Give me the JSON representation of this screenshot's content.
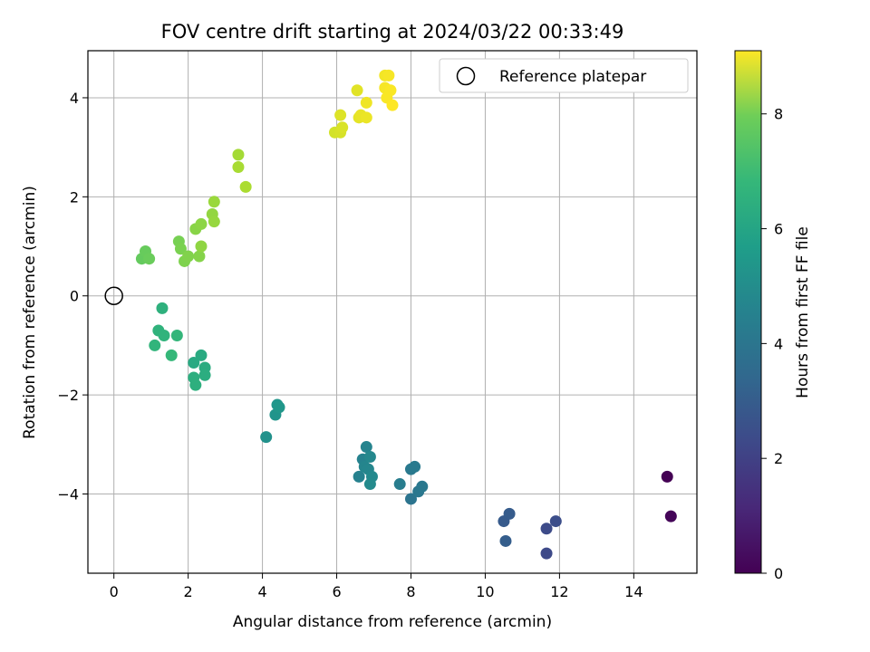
{
  "chart_data": {
    "type": "scatter",
    "title": "FOV centre drift starting at 2024/03/22 00:33:49",
    "xlabel": "Angular distance from reference (arcmin)",
    "ylabel": "Rotation from reference (arcmin)",
    "xlim": [
      -0.7,
      15.7
    ],
    "ylim": [
      -5.6,
      4.95
    ],
    "xticks": [
      0,
      2,
      4,
      6,
      8,
      10,
      12,
      14
    ],
    "yticks": [
      -4,
      -2,
      0,
      2,
      4
    ],
    "xtick_labels": [
      "0",
      "2",
      "4",
      "6",
      "8",
      "10",
      "12",
      "14"
    ],
    "ytick_labels": [
      "−4",
      "−2",
      "0",
      "2",
      "4"
    ],
    "grid": true,
    "colormap": "viridis",
    "colorbar": {
      "label": "Hours from first FF file",
      "range": [
        0,
        9.1
      ],
      "ticks": [
        0,
        2,
        4,
        6,
        8
      ],
      "tick_labels": [
        "0",
        "2",
        "4",
        "6",
        "8"
      ]
    },
    "legend": {
      "position": "top-right",
      "entries": [
        "Reference platepar"
      ]
    },
    "reference_point": {
      "x": 0,
      "y": 0
    },
    "points": [
      {
        "x": 14.9,
        "y": -3.65,
        "c": 0.0
      },
      {
        "x": 15.0,
        "y": -4.45,
        "c": 0.1
      },
      {
        "x": 11.65,
        "y": -5.2,
        "c": 2.05
      },
      {
        "x": 11.65,
        "y": -4.7,
        "c": 2.1
      },
      {
        "x": 11.9,
        "y": -4.55,
        "c": 2.2
      },
      {
        "x": 10.5,
        "y": -4.55,
        "c": 2.6
      },
      {
        "x": 10.65,
        "y": -4.4,
        "c": 2.65
      },
      {
        "x": 10.55,
        "y": -4.95,
        "c": 2.7
      },
      {
        "x": 8.0,
        "y": -4.1,
        "c": 3.5
      },
      {
        "x": 8.2,
        "y": -3.95,
        "c": 3.6
      },
      {
        "x": 8.3,
        "y": -3.85,
        "c": 3.65
      },
      {
        "x": 8.0,
        "y": -3.5,
        "c": 3.7
      },
      {
        "x": 8.1,
        "y": -3.45,
        "c": 3.75
      },
      {
        "x": 7.7,
        "y": -3.8,
        "c": 3.85
      },
      {
        "x": 6.6,
        "y": -3.65,
        "c": 4.0
      },
      {
        "x": 6.7,
        "y": -3.3,
        "c": 4.05
      },
      {
        "x": 6.8,
        "y": -3.05,
        "c": 4.1
      },
      {
        "x": 6.75,
        "y": -3.45,
        "c": 4.15
      },
      {
        "x": 6.85,
        "y": -3.5,
        "c": 4.2
      },
      {
        "x": 6.9,
        "y": -3.25,
        "c": 4.25
      },
      {
        "x": 6.95,
        "y": -3.65,
        "c": 4.3
      },
      {
        "x": 6.9,
        "y": -3.8,
        "c": 4.35
      },
      {
        "x": 4.1,
        "y": -2.85,
        "c": 4.6
      },
      {
        "x": 4.35,
        "y": -2.4,
        "c": 4.7
      },
      {
        "x": 4.4,
        "y": -2.2,
        "c": 4.75
      },
      {
        "x": 4.45,
        "y": -2.25,
        "c": 4.8
      },
      {
        "x": 2.15,
        "y": -1.35,
        "c": 5.5
      },
      {
        "x": 2.35,
        "y": -1.2,
        "c": 5.55
      },
      {
        "x": 2.45,
        "y": -1.45,
        "c": 5.6
      },
      {
        "x": 2.45,
        "y": -1.6,
        "c": 5.65
      },
      {
        "x": 2.15,
        "y": -1.65,
        "c": 5.7
      },
      {
        "x": 2.2,
        "y": -1.8,
        "c": 5.75
      },
      {
        "x": 1.3,
        "y": -0.25,
        "c": 5.8
      },
      {
        "x": 1.2,
        "y": -0.7,
        "c": 5.85
      },
      {
        "x": 1.35,
        "y": -0.8,
        "c": 5.9
      },
      {
        "x": 1.1,
        "y": -1.0,
        "c": 5.95
      },
      {
        "x": 1.7,
        "y": -0.8,
        "c": 6.0
      },
      {
        "x": 1.55,
        "y": -1.2,
        "c": 6.05
      },
      {
        "x": 0.75,
        "y": 0.75,
        "c": 6.9
      },
      {
        "x": 0.85,
        "y": 0.9,
        "c": 6.95
      },
      {
        "x": 0.95,
        "y": 0.75,
        "c": 7.0
      },
      {
        "x": 1.75,
        "y": 1.1,
        "c": 7.2
      },
      {
        "x": 1.8,
        "y": 0.95,
        "c": 7.25
      },
      {
        "x": 1.9,
        "y": 0.7,
        "c": 7.3
      },
      {
        "x": 2.0,
        "y": 0.8,
        "c": 7.35
      },
      {
        "x": 2.3,
        "y": 0.8,
        "c": 7.4
      },
      {
        "x": 2.2,
        "y": 1.35,
        "c": 7.45
      },
      {
        "x": 2.35,
        "y": 1.45,
        "c": 7.5
      },
      {
        "x": 2.35,
        "y": 1.0,
        "c": 7.55
      },
      {
        "x": 2.65,
        "y": 1.65,
        "c": 7.6
      },
      {
        "x": 2.7,
        "y": 1.5,
        "c": 7.65
      },
      {
        "x": 2.7,
        "y": 1.9,
        "c": 7.7
      },
      {
        "x": 3.35,
        "y": 2.85,
        "c": 7.85
      },
      {
        "x": 3.35,
        "y": 2.6,
        "c": 7.9
      },
      {
        "x": 3.55,
        "y": 2.2,
        "c": 7.95
      },
      {
        "x": 5.95,
        "y": 3.3,
        "c": 8.5
      },
      {
        "x": 6.1,
        "y": 3.3,
        "c": 8.55
      },
      {
        "x": 6.15,
        "y": 3.4,
        "c": 8.6
      },
      {
        "x": 6.1,
        "y": 3.65,
        "c": 8.65
      },
      {
        "x": 6.55,
        "y": 4.15,
        "c": 8.7
      },
      {
        "x": 6.6,
        "y": 3.6,
        "c": 8.75
      },
      {
        "x": 6.65,
        "y": 3.65,
        "c": 8.8
      },
      {
        "x": 6.8,
        "y": 3.6,
        "c": 8.85
      },
      {
        "x": 6.8,
        "y": 3.9,
        "c": 8.9
      },
      {
        "x": 7.3,
        "y": 4.45,
        "c": 8.95
      },
      {
        "x": 7.4,
        "y": 4.45,
        "c": 9.0
      },
      {
        "x": 7.3,
        "y": 4.2,
        "c": 9.0
      },
      {
        "x": 7.45,
        "y": 4.15,
        "c": 9.05
      },
      {
        "x": 7.35,
        "y": 4.0,
        "c": 9.05
      },
      {
        "x": 7.5,
        "y": 3.85,
        "c": 9.1
      }
    ]
  }
}
